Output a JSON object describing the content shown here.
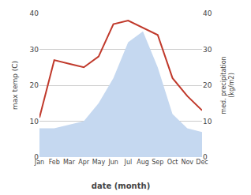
{
  "chart_data": {
    "type": "line",
    "categories": [
      "Jan",
      "Feb",
      "Mar",
      "Apr",
      "May",
      "Jun",
      "Jul",
      "Aug",
      "Sep",
      "Oct",
      "Nov",
      "Dec"
    ],
    "series": [
      {
        "type": "area",
        "axis": "y2",
        "color": "#c5d8f0",
        "values": [
          8,
          8,
          9,
          10,
          15,
          22,
          32,
          35,
          25,
          12,
          8,
          7
        ]
      },
      {
        "type": "line",
        "color": "#c0392b",
        "values": [
          11,
          27,
          26,
          25,
          28,
          37,
          38,
          36,
          34,
          22,
          17,
          13
        ]
      }
    ],
    "xlabel": "date (month)",
    "ylabel": "max temp (C)",
    "y2label": "med. precipitation\n(kg/m2)",
    "ylim": [
      0,
      40
    ],
    "yticks": [
      0,
      10,
      20,
      30,
      40
    ],
    "y2lim": [
      0,
      40
    ],
    "y2ticks": [
      0,
      10,
      20,
      30,
      40
    ],
    "grid": true
  }
}
